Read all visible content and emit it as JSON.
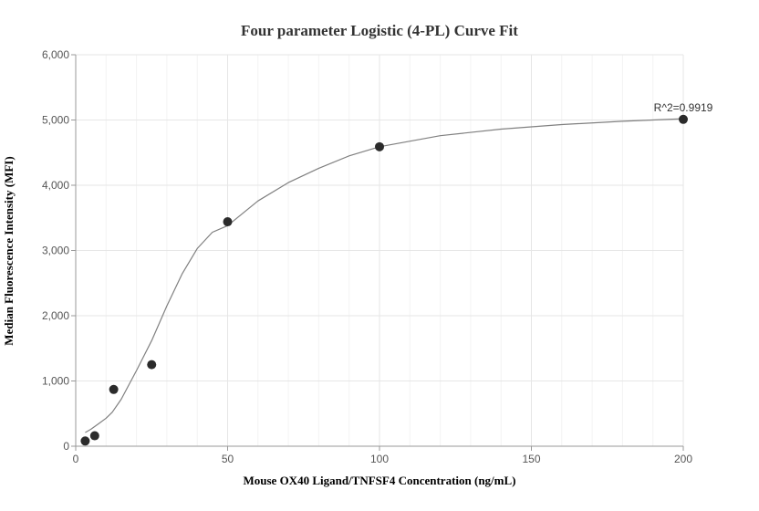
{
  "chart_data": {
    "type": "scatter",
    "title": "Four parameter Logistic (4-PL) Curve Fit",
    "xlabel": "Mouse OX40 Ligand/TNFSF4 Concentration (ng/mL)",
    "ylabel": "Median Fluorescence Intensity (MFI)",
    "xlim": [
      0,
      200
    ],
    "ylim": [
      0,
      6000
    ],
    "x_ticks": [
      0,
      50,
      100,
      150,
      200
    ],
    "x_tick_labels": [
      "0",
      "50",
      "100",
      "150",
      "200"
    ],
    "y_ticks": [
      0,
      1000,
      2000,
      3000,
      4000,
      5000,
      6000
    ],
    "y_tick_labels": [
      "0",
      "1,000",
      "2,000",
      "3,000",
      "4,000",
      "5,000",
      "6,000"
    ],
    "grid": true,
    "legend": "none",
    "series": [
      {
        "type": "scatter",
        "x": [
          3.125,
          6.25,
          12.5,
          25,
          50,
          100,
          200
        ],
        "y": [
          80,
          160,
          870,
          1250,
          3440,
          4590,
          5010
        ]
      },
      {
        "type": "line",
        "x": [
          3.125,
          5,
          8,
          10,
          12,
          15,
          20,
          25,
          30,
          35,
          40,
          45,
          50,
          60,
          70,
          80,
          90,
          100,
          120,
          140,
          160,
          180,
          200
        ],
        "y": [
          210,
          260,
          360,
          430,
          520,
          720,
          1160,
          1620,
          2150,
          2640,
          3030,
          3280,
          3380,
          3760,
          4040,
          4260,
          4450,
          4590,
          4760,
          4860,
          4930,
          4980,
          5020
        ]
      }
    ],
    "annotations": [
      {
        "text": "R^2=0.9919",
        "x": 200,
        "y": 5010
      }
    ],
    "colors": {
      "point": "#2b2b2b",
      "curve": "#808080",
      "grid": "#e6e6e6",
      "axis": "#999999"
    }
  }
}
